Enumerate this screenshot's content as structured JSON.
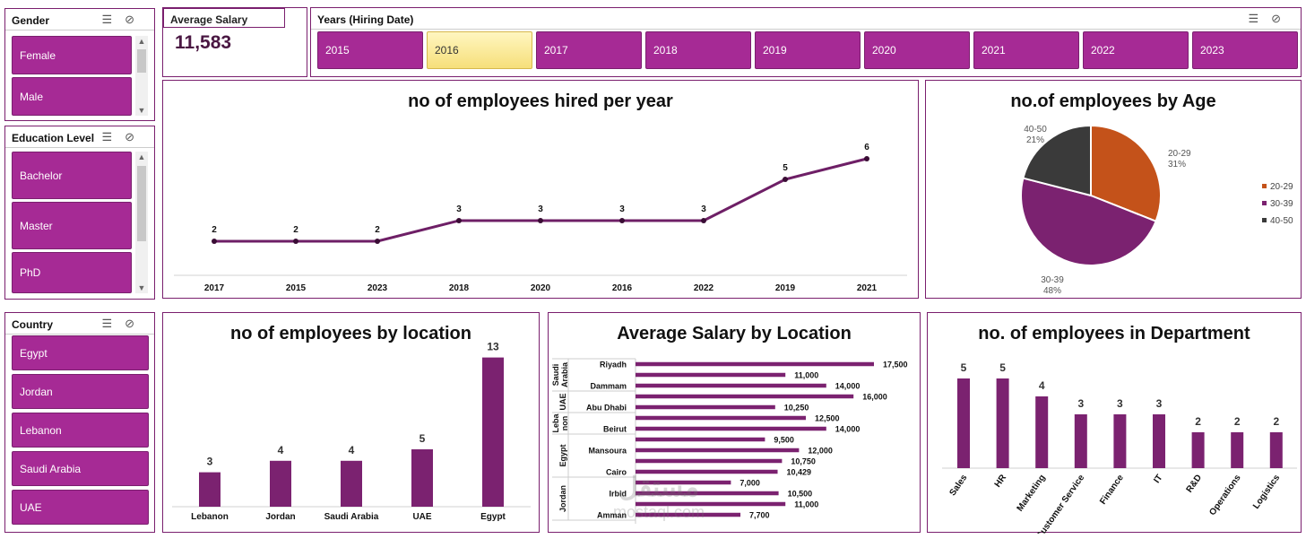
{
  "slicers": {
    "gender": {
      "title": "Gender",
      "items": [
        "Female",
        "Male"
      ]
    },
    "education": {
      "title": "Education Level",
      "items": [
        "Bachelor",
        "Master",
        "PhD"
      ]
    },
    "country": {
      "title": "Country",
      "items": [
        "Egypt",
        "Jordan",
        "Lebanon",
        "Saudi Arabia",
        "UAE"
      ]
    },
    "years": {
      "title": "Years (Hiring Date)",
      "items": [
        "2015",
        "2016",
        "2017",
        "2018",
        "2019",
        "2020",
        "2021",
        "2022",
        "2023"
      ],
      "selected": "2016"
    }
  },
  "kpi": {
    "label": "Average Salary",
    "value": "11,583"
  },
  "watermark": {
    "line1": "مستقل",
    "line2": "mostaql.com"
  },
  "chart_data": [
    {
      "id": "hired",
      "type": "line",
      "title": "no of employees hired per year",
      "categories": [
        "2017",
        "2015",
        "2023",
        "2018",
        "2020",
        "2016",
        "2022",
        "2019",
        "2021"
      ],
      "values": [
        2,
        2,
        2,
        3,
        3,
        3,
        3,
        5,
        6
      ],
      "color": "#6e1f66"
    },
    {
      "id": "age",
      "type": "pie",
      "title": "no.of employees by Age",
      "slices": [
        {
          "name": "20-29",
          "value": 31,
          "label": "31%",
          "color": "#c4521a"
        },
        {
          "name": "30-39",
          "value": 48,
          "label": "48%",
          "color": "#7b2270"
        },
        {
          "name": "40-50",
          "value": 21,
          "label": "21%",
          "color": "#3a3a3a"
        }
      ],
      "legend": "right"
    },
    {
      "id": "location",
      "type": "bar",
      "title": "no of employees by location",
      "categories": [
        "Lebanon",
        "Jordan",
        "Saudi Arabia",
        "UAE",
        "Egypt"
      ],
      "values": [
        3,
        4,
        4,
        5,
        13
      ],
      "color": "#7b2270"
    },
    {
      "id": "salary",
      "type": "bar",
      "orientation": "horizontal",
      "title": "Average Salary by Location",
      "groups": [
        {
          "name": "Saudi Arabia",
          "rows": [
            {
              "label": "Riyadh",
              "value": 17500,
              "text": "17,500"
            },
            {
              "label": "",
              "value": 11000,
              "text": "11,000"
            },
            {
              "label": "Dammam",
              "value": 14000,
              "text": "14,000"
            }
          ]
        },
        {
          "name": "UAE",
          "rows": [
            {
              "label": "",
              "value": 16000,
              "text": "16,000"
            },
            {
              "label": "Abu Dhabi",
              "value": 10250,
              "text": "10,250"
            }
          ]
        },
        {
          "name": "Lebanon",
          "rows": [
            {
              "label": "",
              "value": 12500,
              "text": "12,500"
            },
            {
              "label": "Beirut",
              "value": 14000,
              "text": "14,000"
            }
          ]
        },
        {
          "name": "Egypt",
          "rows": [
            {
              "label": "",
              "value": 9500,
              "text": "9,500"
            },
            {
              "label": "Mansoura",
              "value": 12000,
              "text": "12,000"
            },
            {
              "label": "",
              "value": 10750,
              "text": "10,750"
            },
            {
              "label": "Cairo",
              "value": 10429,
              "text": "10,429"
            }
          ]
        },
        {
          "name": "Jordan",
          "rows": [
            {
              "label": "",
              "value": 7000,
              "text": "7,000"
            },
            {
              "label": "Irbid",
              "value": 10500,
              "text": "10,500"
            },
            {
              "label": "",
              "value": 11000,
              "text": "11,000"
            },
            {
              "label": "Amman",
              "value": 7700,
              "text": "7,700"
            }
          ]
        }
      ],
      "group_labels": [
        "Saudi\nArabia",
        "UAE",
        "Leba\nnon",
        "Egypt",
        "Jordan"
      ],
      "xlim": [
        0,
        17500
      ],
      "color": "#7b2270"
    },
    {
      "id": "dept",
      "type": "bar",
      "title": "no. of employees in Department",
      "categories": [
        "Sales",
        "HR",
        "Marketing",
        "Customer Service",
        "Finance",
        "IT",
        "R&D",
        "Operations",
        "Logistics"
      ],
      "values": [
        5,
        5,
        4,
        3,
        3,
        3,
        2,
        2,
        2
      ],
      "color": "#7b2270"
    }
  ]
}
